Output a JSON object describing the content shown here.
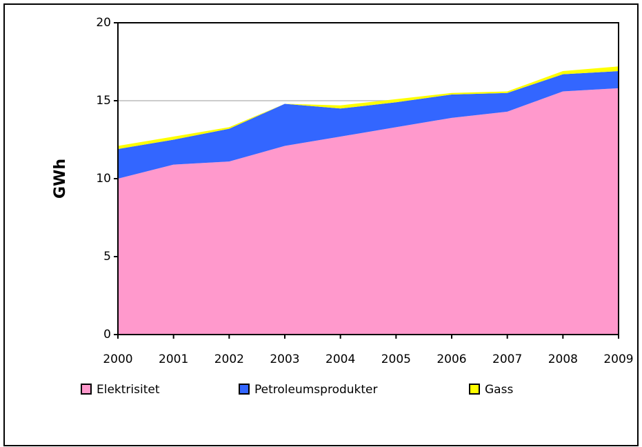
{
  "chart_data": {
    "type": "stacked_area",
    "y_label": "GWh",
    "x": [
      2000,
      2001,
      2002,
      2003,
      2004,
      2005,
      2006,
      2007,
      2008,
      2009
    ],
    "series": [
      {
        "name": "Elektrisitet",
        "color": "#ff99cc",
        "values": [
          10.0,
          10.9,
          11.1,
          12.1,
          12.7,
          13.3,
          13.9,
          14.3,
          15.6,
          15.8
        ]
      },
      {
        "name": "Petroleumsprodukter",
        "color": "#3366ff",
        "values": [
          1.9,
          1.6,
          2.1,
          2.7,
          1.8,
          1.6,
          1.5,
          1.2,
          1.1,
          1.1
        ]
      },
      {
        "name": "Gass",
        "color": "#ffff00",
        "values": [
          0.2,
          0.2,
          0.1,
          0.0,
          0.2,
          0.2,
          0.1,
          0.1,
          0.2,
          0.3
        ]
      }
    ],
    "xlim": [
      2000,
      2009
    ],
    "xticks": [
      2000,
      2001,
      2002,
      2003,
      2004,
      2005,
      2006,
      2007,
      2008,
      2009
    ],
    "ylim": [
      0,
      20
    ],
    "yticks": [
      0,
      5,
      10,
      15,
      20
    ],
    "grid": true
  }
}
